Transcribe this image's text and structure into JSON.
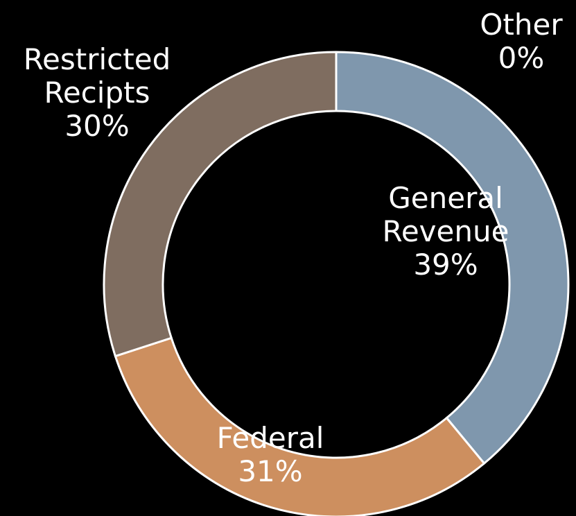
{
  "chart_data": {
    "type": "donut",
    "categories": [
      "General Revenue",
      "Federal",
      "Restricted Recipts",
      "Other"
    ],
    "values": [
      39,
      31,
      30,
      0
    ],
    "value_labels": [
      "39%",
      "31%",
      "30%",
      "0%"
    ],
    "colors": [
      "#7f97ad",
      "#cd8f5f",
      "#7f6d60",
      "#a5a5a5"
    ]
  }
}
